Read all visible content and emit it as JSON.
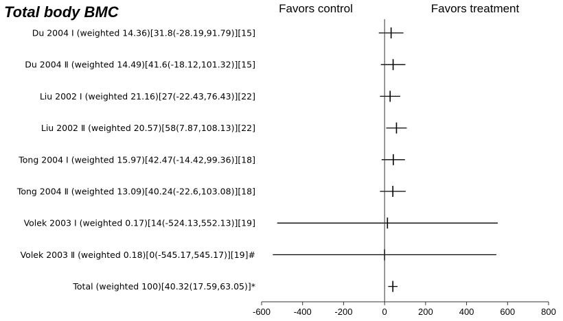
{
  "chart_data": {
    "type": "forest",
    "title": "Total body BMC",
    "header_left": "Favors control",
    "header_right": "Favors treatment",
    "xlim": [
      -600,
      800
    ],
    "xticks": [
      -600,
      -400,
      -200,
      0,
      200,
      400,
      600,
      800
    ],
    "grid": false,
    "rows": [
      {
        "label": "Du 2004 Ⅰ  (weighted 14.36)[31.8(-28.19,91.79)][15]",
        "estimate": 31.8,
        "lower": -28.19,
        "upper": 91.79
      },
      {
        "label": "Du 2004 Ⅱ  (weighted 14.49)[41.6(-18.12,101.32)][15]",
        "estimate": 41.6,
        "lower": -18.12,
        "upper": 101.32
      },
      {
        "label": "Liu 2002 Ⅰ  (weighted 21.16)[27(-22.43,76.43)][22]",
        "estimate": 27,
        "lower": -22.43,
        "upper": 76.43
      },
      {
        "label": "Liu 2002 Ⅱ  (weighted 20.57)[58(7.87,108.13)][22]",
        "estimate": 58,
        "lower": 7.87,
        "upper": 108.13
      },
      {
        "label": "Tong 2004 Ⅰ  (weighted 15.97)[42.47(-14.42,99.36)][18]",
        "estimate": 42.47,
        "lower": -14.42,
        "upper": 99.36
      },
      {
        "label": "Tong 2004 Ⅱ  (weighted 13.09)[40.24(-22.6,103.08)][18]",
        "estimate": 40.24,
        "lower": -22.6,
        "upper": 103.08
      },
      {
        "label": "Volek 2003 Ⅰ  (weighted 0.17)[14(-524.13,552.13)][19]",
        "estimate": 14,
        "lower": -524.13,
        "upper": 552.13
      },
      {
        "label": "Volek 2003 Ⅱ  (weighted 0.18)[0(-545.17,545.17)][19]#",
        "estimate": 0,
        "lower": -545.17,
        "upper": 545.17
      },
      {
        "label": "Total (weighted 100)[40.32(17.59,63.05)]*",
        "estimate": 40.32,
        "lower": 17.59,
        "upper": 63.05
      }
    ]
  }
}
